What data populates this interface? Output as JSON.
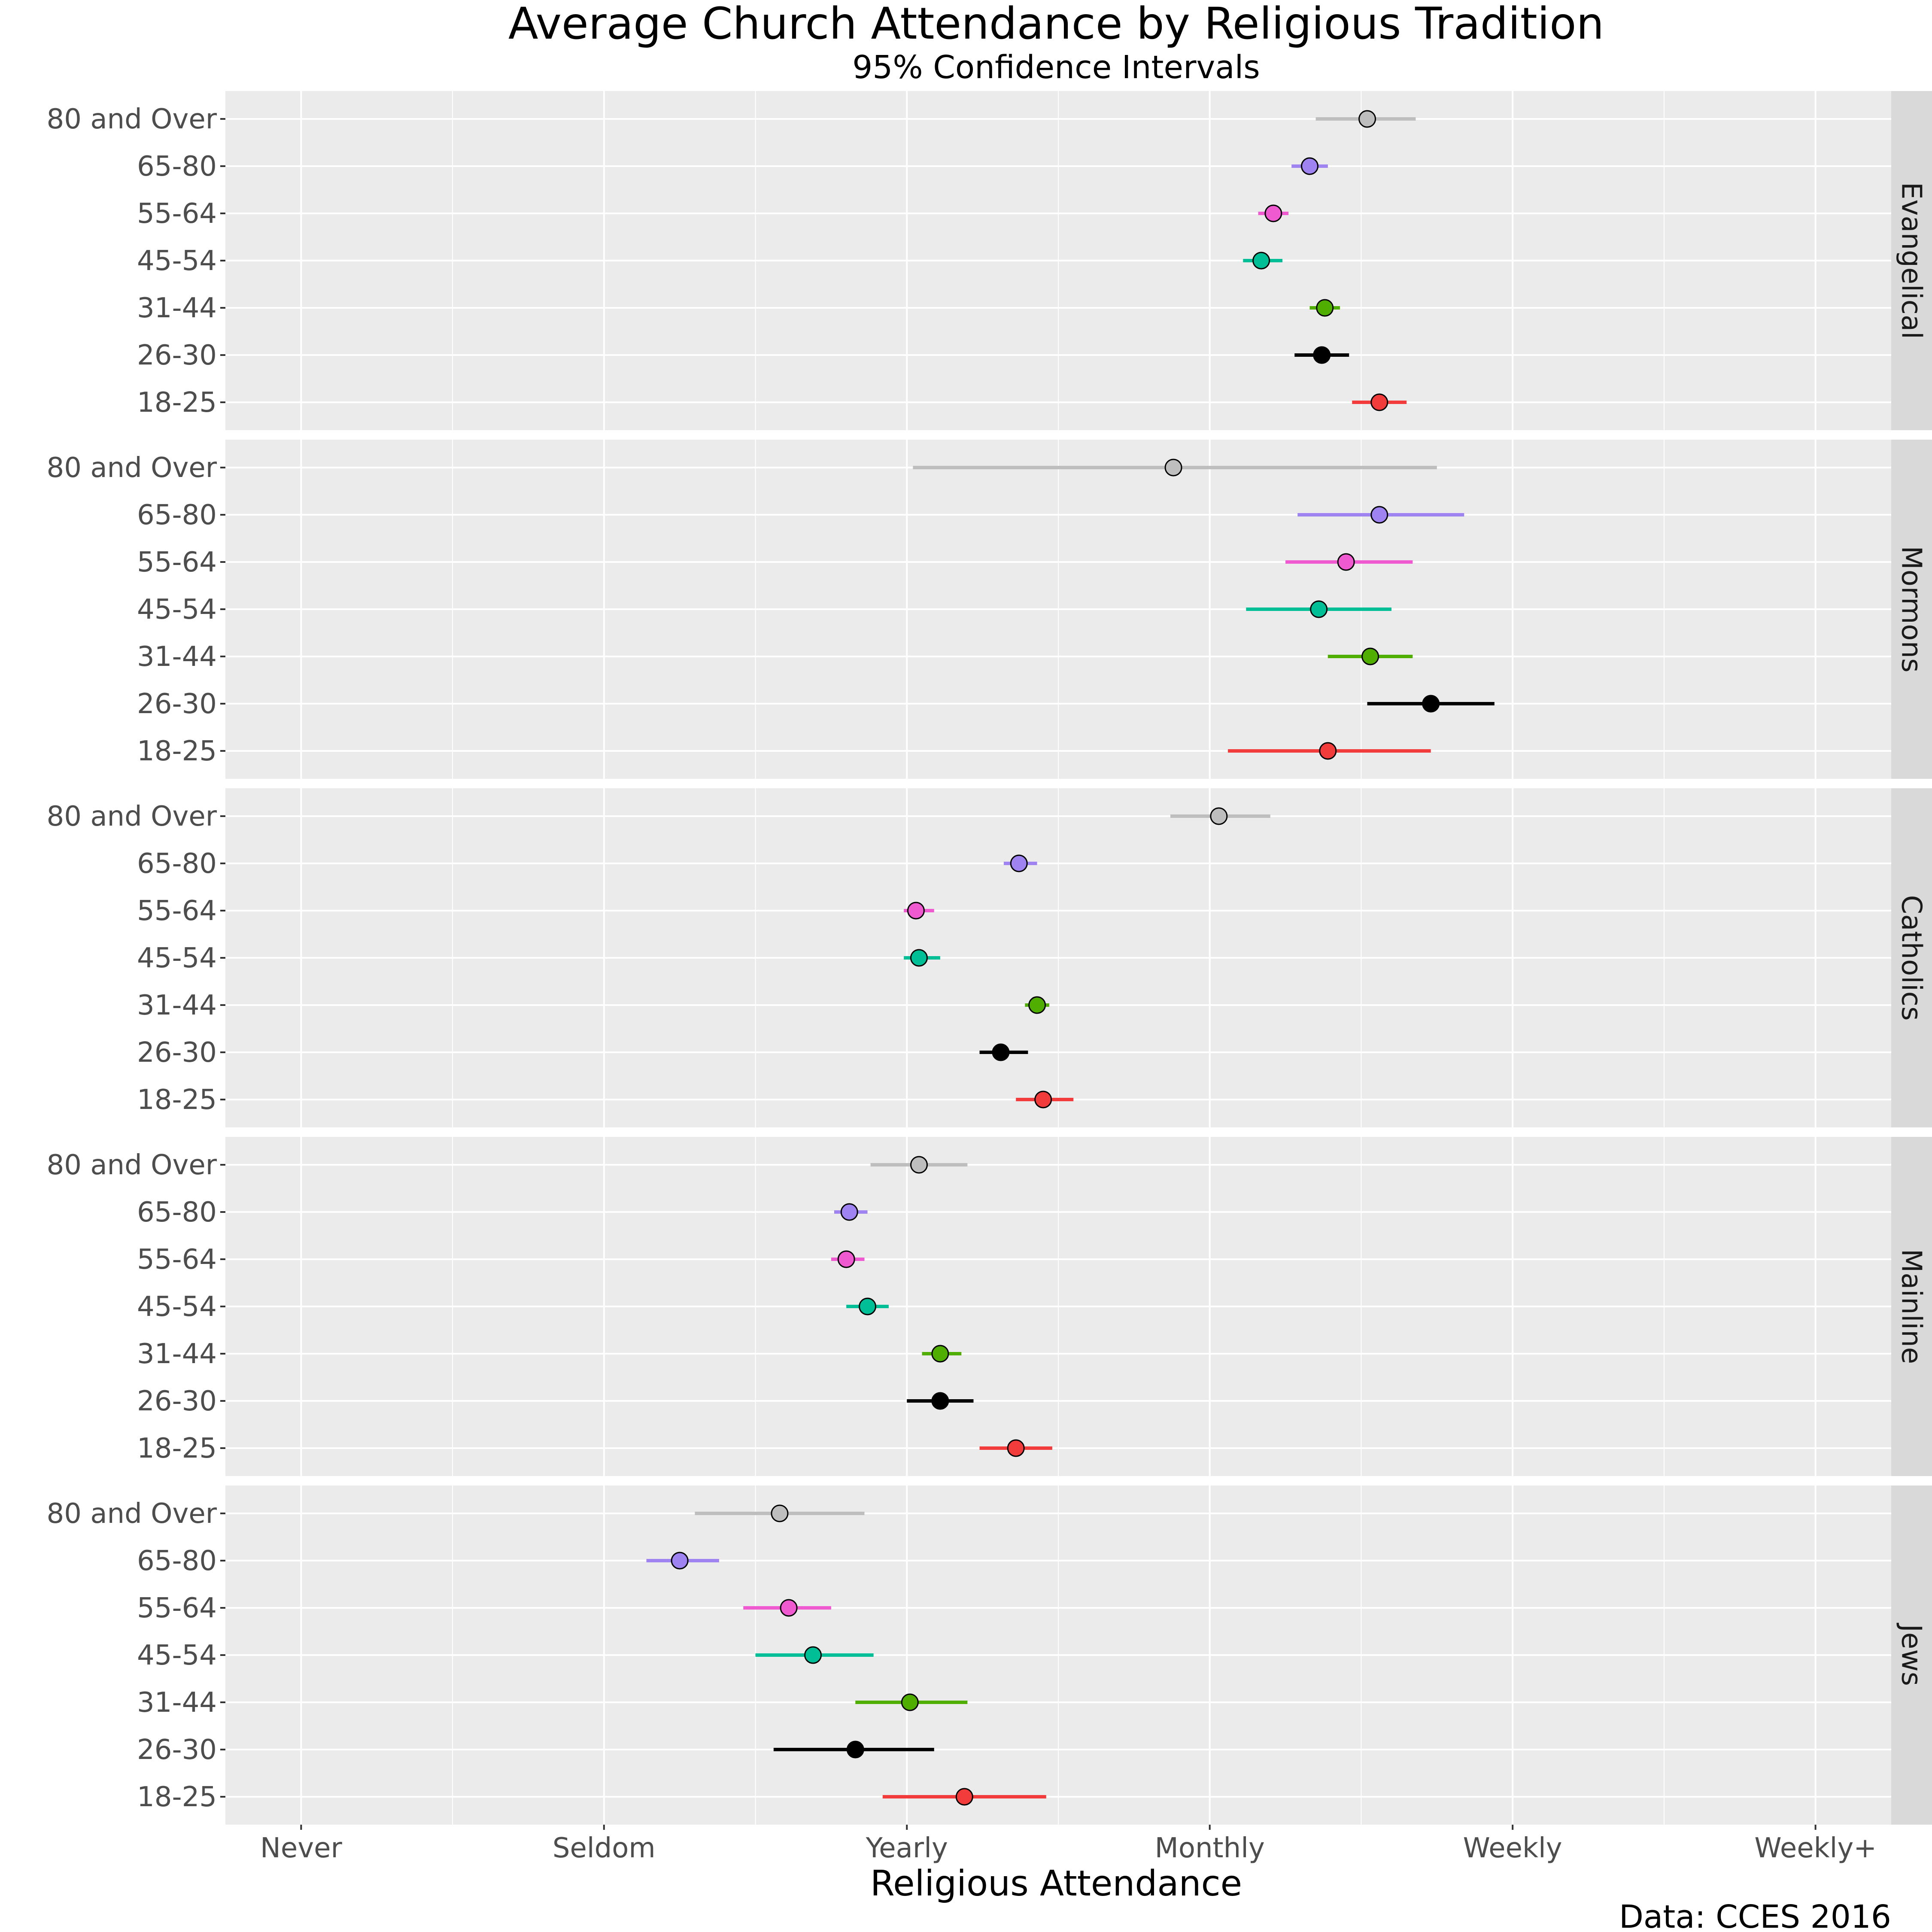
{
  "chart_data": {
    "type": "scatter",
    "title": "Average Church Attendance by Religious Tradition",
    "subtitle": "95% Confidence Intervals",
    "xlabel": "Religious Attendance",
    "caption": "Data: CCES 2016",
    "x_ticks": [
      "Never",
      "Seldom",
      "Yearly",
      "Monthly",
      "Weekly",
      "Weekly+"
    ],
    "x_tick_values": [
      1,
      2,
      3,
      4,
      5,
      6
    ],
    "xlim": [
      0.75,
      6.25
    ],
    "y_categories": [
      "80 and Over",
      "65-80",
      "55-64",
      "45-54",
      "31-44",
      "26-30",
      "18-25"
    ],
    "grid": true,
    "colors": {
      "80 and Over": "#bebebe",
      "65-80": "#9f83f0",
      "55-64": "#f05ad0",
      "45-54": "#00bf96",
      "31-44": "#4fae00",
      "26-30": "#000000",
      "18-25": "#f23b3b"
    },
    "panels": [
      {
        "name": "Evangelical",
        "points": [
          {
            "age": "80 and Over",
            "mean": 4.52,
            "low": 4.35,
            "high": 4.68
          },
          {
            "age": "65-80",
            "mean": 4.33,
            "low": 4.27,
            "high": 4.39
          },
          {
            "age": "55-64",
            "mean": 4.21,
            "low": 4.16,
            "high": 4.26
          },
          {
            "age": "45-54",
            "mean": 4.17,
            "low": 4.11,
            "high": 4.24
          },
          {
            "age": "31-44",
            "mean": 4.38,
            "low": 4.33,
            "high": 4.43
          },
          {
            "age": "26-30",
            "mean": 4.37,
            "low": 4.28,
            "high": 4.46
          },
          {
            "age": "18-25",
            "mean": 4.56,
            "low": 4.47,
            "high": 4.65
          }
        ]
      },
      {
        "name": "Mormons",
        "points": [
          {
            "age": "80 and Over",
            "mean": 3.88,
            "low": 3.02,
            "high": 4.75
          },
          {
            "age": "65-80",
            "mean": 4.56,
            "low": 4.29,
            "high": 4.84
          },
          {
            "age": "55-64",
            "mean": 4.45,
            "low": 4.25,
            "high": 4.67
          },
          {
            "age": "45-54",
            "mean": 4.36,
            "low": 4.12,
            "high": 4.6
          },
          {
            "age": "31-44",
            "mean": 4.53,
            "low": 4.39,
            "high": 4.67
          },
          {
            "age": "26-30",
            "mean": 4.73,
            "low": 4.52,
            "high": 4.94
          },
          {
            "age": "18-25",
            "mean": 4.39,
            "low": 4.06,
            "high": 4.73
          }
        ]
      },
      {
        "name": "Catholics",
        "points": [
          {
            "age": "80 and Over",
            "mean": 4.03,
            "low": 3.87,
            "high": 4.2
          },
          {
            "age": "65-80",
            "mean": 3.37,
            "low": 3.32,
            "high": 3.43
          },
          {
            "age": "55-64",
            "mean": 3.03,
            "low": 2.99,
            "high": 3.09
          },
          {
            "age": "45-54",
            "mean": 3.04,
            "low": 2.99,
            "high": 3.11
          },
          {
            "age": "31-44",
            "mean": 3.43,
            "low": 3.39,
            "high": 3.47
          },
          {
            "age": "26-30",
            "mean": 3.31,
            "low": 3.24,
            "high": 3.4
          },
          {
            "age": "18-25",
            "mean": 3.45,
            "low": 3.36,
            "high": 3.55
          }
        ]
      },
      {
        "name": "Mainline",
        "points": [
          {
            "age": "80 and Over",
            "mean": 3.04,
            "low": 2.88,
            "high": 3.2
          },
          {
            "age": "65-80",
            "mean": 2.81,
            "low": 2.76,
            "high": 2.87
          },
          {
            "age": "55-64",
            "mean": 2.8,
            "low": 2.75,
            "high": 2.86
          },
          {
            "age": "45-54",
            "mean": 2.87,
            "low": 2.8,
            "high": 2.94
          },
          {
            "age": "31-44",
            "mean": 3.11,
            "low": 3.05,
            "high": 3.18
          },
          {
            "age": "26-30",
            "mean": 3.11,
            "low": 3.0,
            "high": 3.22
          },
          {
            "age": "18-25",
            "mean": 3.36,
            "low": 3.24,
            "high": 3.48
          }
        ]
      },
      {
        "name": "Jews",
        "points": [
          {
            "age": "80 and Over",
            "mean": 2.58,
            "low": 2.3,
            "high": 2.86
          },
          {
            "age": "65-80",
            "mean": 2.25,
            "low": 2.14,
            "high": 2.38
          },
          {
            "age": "55-64",
            "mean": 2.61,
            "low": 2.46,
            "high": 2.75
          },
          {
            "age": "45-54",
            "mean": 2.69,
            "low": 2.5,
            "high": 2.89
          },
          {
            "age": "31-44",
            "mean": 3.01,
            "low": 2.83,
            "high": 3.2
          },
          {
            "age": "26-30",
            "mean": 2.83,
            "low": 2.56,
            "high": 3.09
          },
          {
            "age": "18-25",
            "mean": 3.19,
            "low": 2.92,
            "high": 3.46
          }
        ]
      }
    ]
  }
}
